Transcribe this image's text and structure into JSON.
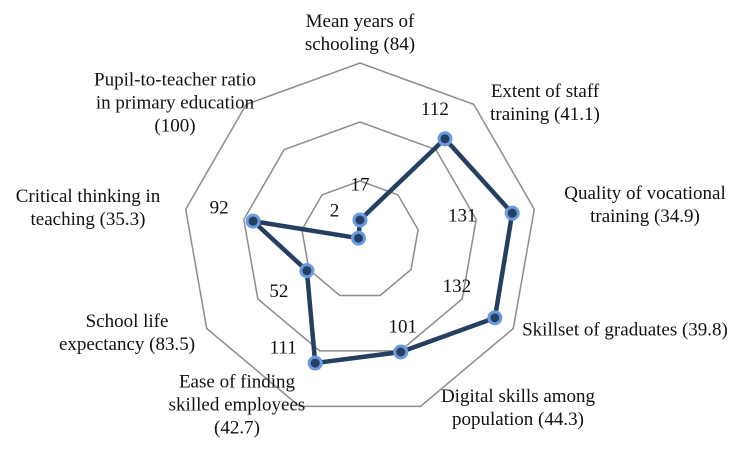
{
  "chart_data": {
    "type": "radar",
    "categories": [
      "Mean years of schooling (84)",
      "Extent of staff training (41.1)",
      "Quality of vocational training (34.9)",
      "Skillset of graduates (39.8)",
      "Digital skills among population (44.3)",
      "Ease of finding skilled employees (42.7)",
      "School life expectancy  (83.5)",
      "Critical thinking in teaching (35.3)",
      "Pupil-to-teacher ratio in primary education (100)"
    ],
    "values": [
      17,
      112,
      131,
      132,
      101,
      111,
      52,
      92,
      2
    ],
    "color": "#243f60",
    "marker_edge_color": "#6a9ae0",
    "rlim": [
      0,
      150
    ],
    "rticks": [
      50,
      100,
      150
    ],
    "grid": true
  }
}
